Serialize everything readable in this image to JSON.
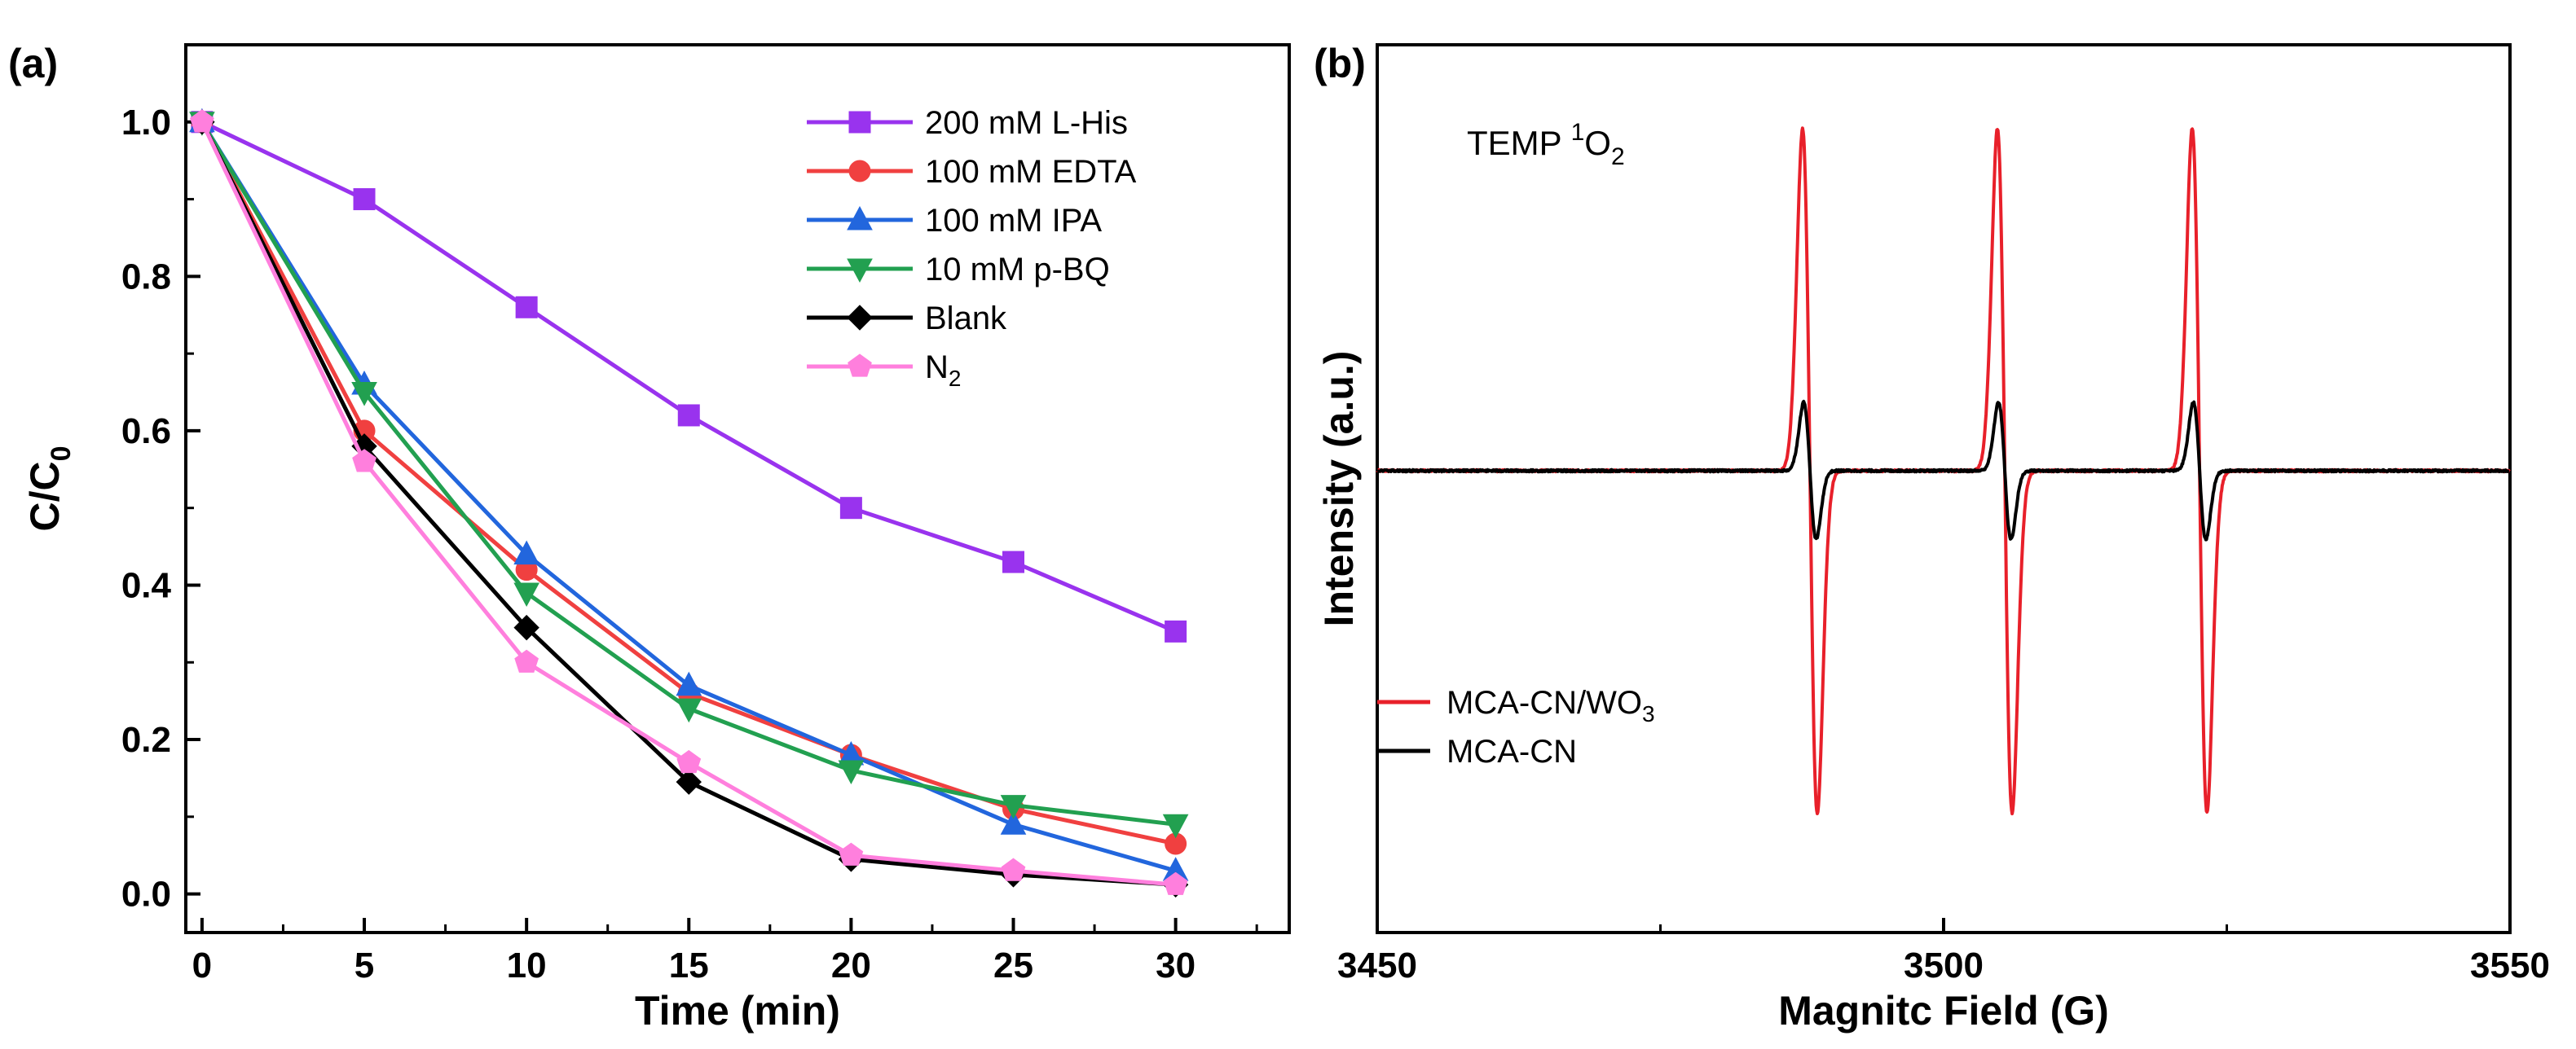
{
  "chart_data": [
    {
      "type": "line",
      "panel_label": "(a)",
      "xlabel": "Time (min)",
      "ylabel": "C/C0",
      "ylabel_main": "C/C",
      "ylabel_sub": "0",
      "xlim": [
        -0.5,
        33.5
      ],
      "ylim": [
        -0.05,
        1.1
      ],
      "x_ticks": [
        0,
        5,
        10,
        15,
        20,
        25,
        30
      ],
      "y_ticks": [
        0.0,
        0.2,
        0.4,
        0.6,
        0.8,
        1.0
      ],
      "x_tick_labels": [
        "0",
        "5",
        "10",
        "15",
        "20",
        "25",
        "30"
      ],
      "y_tick_labels": [
        "0.0",
        "0.2",
        "0.4",
        "0.6",
        "0.8",
        "1.0"
      ],
      "legend_position": "top-right",
      "x": [
        0,
        5,
        10,
        15,
        20,
        25,
        30
      ],
      "series": [
        {
          "name": "200 mM L-His",
          "label_main": "200 mM L-His",
          "label_sub": "",
          "color": "#9933ee",
          "marker": "square",
          "values": [
            1.0,
            0.9,
            0.76,
            0.62,
            0.5,
            0.43,
            0.34
          ]
        },
        {
          "name": "100 mM EDTA",
          "label_main": "100 mM EDTA",
          "label_sub": "",
          "color": "#f04040",
          "marker": "circle",
          "values": [
            1.0,
            0.6,
            0.42,
            0.26,
            0.18,
            0.11,
            0.065
          ]
        },
        {
          "name": "100 mM IPA",
          "label_main": "100 mM IPA",
          "label_sub": "",
          "color": "#2266dd",
          "marker": "triangle-up",
          "values": [
            1.0,
            0.66,
            0.44,
            0.27,
            0.18,
            0.09,
            0.03
          ]
        },
        {
          "name": "10  mM p-BQ",
          "label_main": "10  mM p-BQ",
          "label_sub": "",
          "color": "#22a050",
          "marker": "triangle-down",
          "values": [
            1.0,
            0.65,
            0.39,
            0.24,
            0.16,
            0.115,
            0.09
          ]
        },
        {
          "name": "Blank",
          "label_main": "Blank",
          "label_sub": "",
          "color": "#000000",
          "marker": "diamond",
          "values": [
            1.0,
            0.58,
            0.345,
            0.145,
            0.045,
            0.025,
            0.012
          ]
        },
        {
          "name": "N2",
          "label_main": "N",
          "label_sub": "2",
          "color": "#ff7fdd",
          "marker": "pentagon",
          "values": [
            1.0,
            0.56,
            0.3,
            0.17,
            0.05,
            0.03,
            0.012
          ]
        }
      ]
    },
    {
      "type": "line",
      "panel_label": "(b)",
      "xlabel": "Magnitc Field (G)",
      "ylabel": "Intensity (a.u.)",
      "xlim": [
        3450,
        3550
      ],
      "ylim": [
        -1.2,
        1.1
      ],
      "x_ticks": [
        3450,
        3500,
        3550
      ],
      "x_tick_labels": [
        "3450",
        "3500",
        "3550"
      ],
      "annotation": "TEMP 1O2",
      "annotation_main": "TEMP ",
      "annotation_sup": "1",
      "annotation_mid": "O",
      "annotation_sub": "2",
      "legend_position": "bottom-left",
      "peak_centers": [
        3488.2,
        3505.4,
        3522.6
      ],
      "series": [
        {
          "name": "MCA-CN/WO3",
          "label_main": "MCA-CN/WO",
          "label_sub": "3",
          "color": "#e8202a",
          "amplitude": 1.0,
          "width": 0.65
        },
        {
          "name": "MCA-CN",
          "label_main": "MCA-CN",
          "label_sub": "",
          "color": "#000000",
          "amplitude": 0.2,
          "width": 0.55
        }
      ]
    }
  ]
}
